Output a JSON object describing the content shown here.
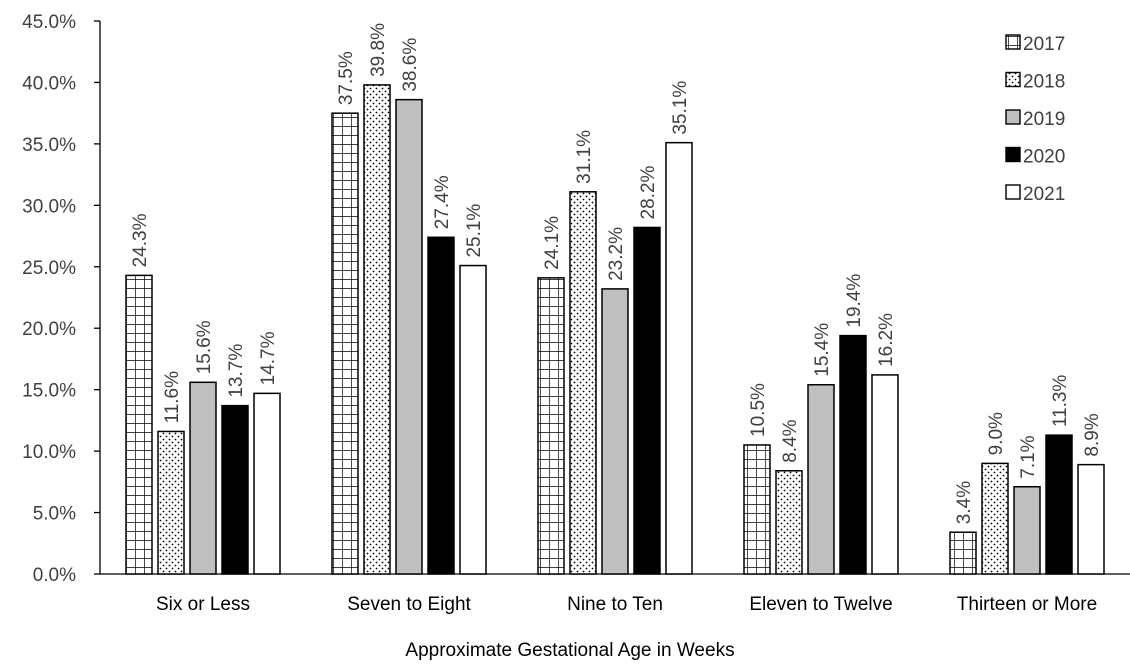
{
  "chart_data": {
    "type": "bar",
    "title": "",
    "xlabel": "Approximate Gestational Age in Weeks",
    "ylabel": "",
    "ylim": [
      0,
      45
    ],
    "ytick_step": 5,
    "yticks": [
      "0.0%",
      "5.0%",
      "10.0%",
      "15.0%",
      "20.0%",
      "25.0%",
      "30.0%",
      "35.0%",
      "40.0%",
      "45.0%"
    ],
    "categories": [
      "Six or Less",
      "Seven to Eight",
      "Nine to Ten",
      "Eleven to Twelve",
      "Thirteen or More"
    ],
    "series": [
      {
        "name": "2017",
        "pattern": "grid",
        "values": [
          24.3,
          37.5,
          24.1,
          10.5,
          3.4
        ],
        "labels": [
          "24.3%",
          "37.5%",
          "24.1%",
          "10.5%",
          "3.4%"
        ]
      },
      {
        "name": "2018",
        "pattern": "dots",
        "values": [
          11.6,
          39.8,
          31.1,
          8.4,
          9.0
        ],
        "labels": [
          "11.6%",
          "39.8%",
          "31.1%",
          "8.4%",
          "9.0%"
        ]
      },
      {
        "name": "2019",
        "pattern": "gray",
        "color": "#bfbfbf",
        "values": [
          15.6,
          38.6,
          23.2,
          15.4,
          7.1
        ],
        "labels": [
          "15.6%",
          "38.6%",
          "23.2%",
          "15.4%",
          "7.1%"
        ]
      },
      {
        "name": "2020",
        "pattern": "black",
        "color": "#000000",
        "values": [
          13.7,
          27.4,
          28.2,
          19.4,
          11.3
        ],
        "labels": [
          "13.7%",
          "27.4%",
          "28.2%",
          "19.4%",
          "11.3%"
        ]
      },
      {
        "name": "2021",
        "pattern": "white",
        "color": "#ffffff",
        "values": [
          14.7,
          25.1,
          35.1,
          16.2,
          8.9
        ],
        "labels": [
          "14.7%",
          "25.1%",
          "35.1%",
          "16.2%",
          "8.9%"
        ]
      }
    ],
    "legend_position": "top-right",
    "grid": false
  }
}
